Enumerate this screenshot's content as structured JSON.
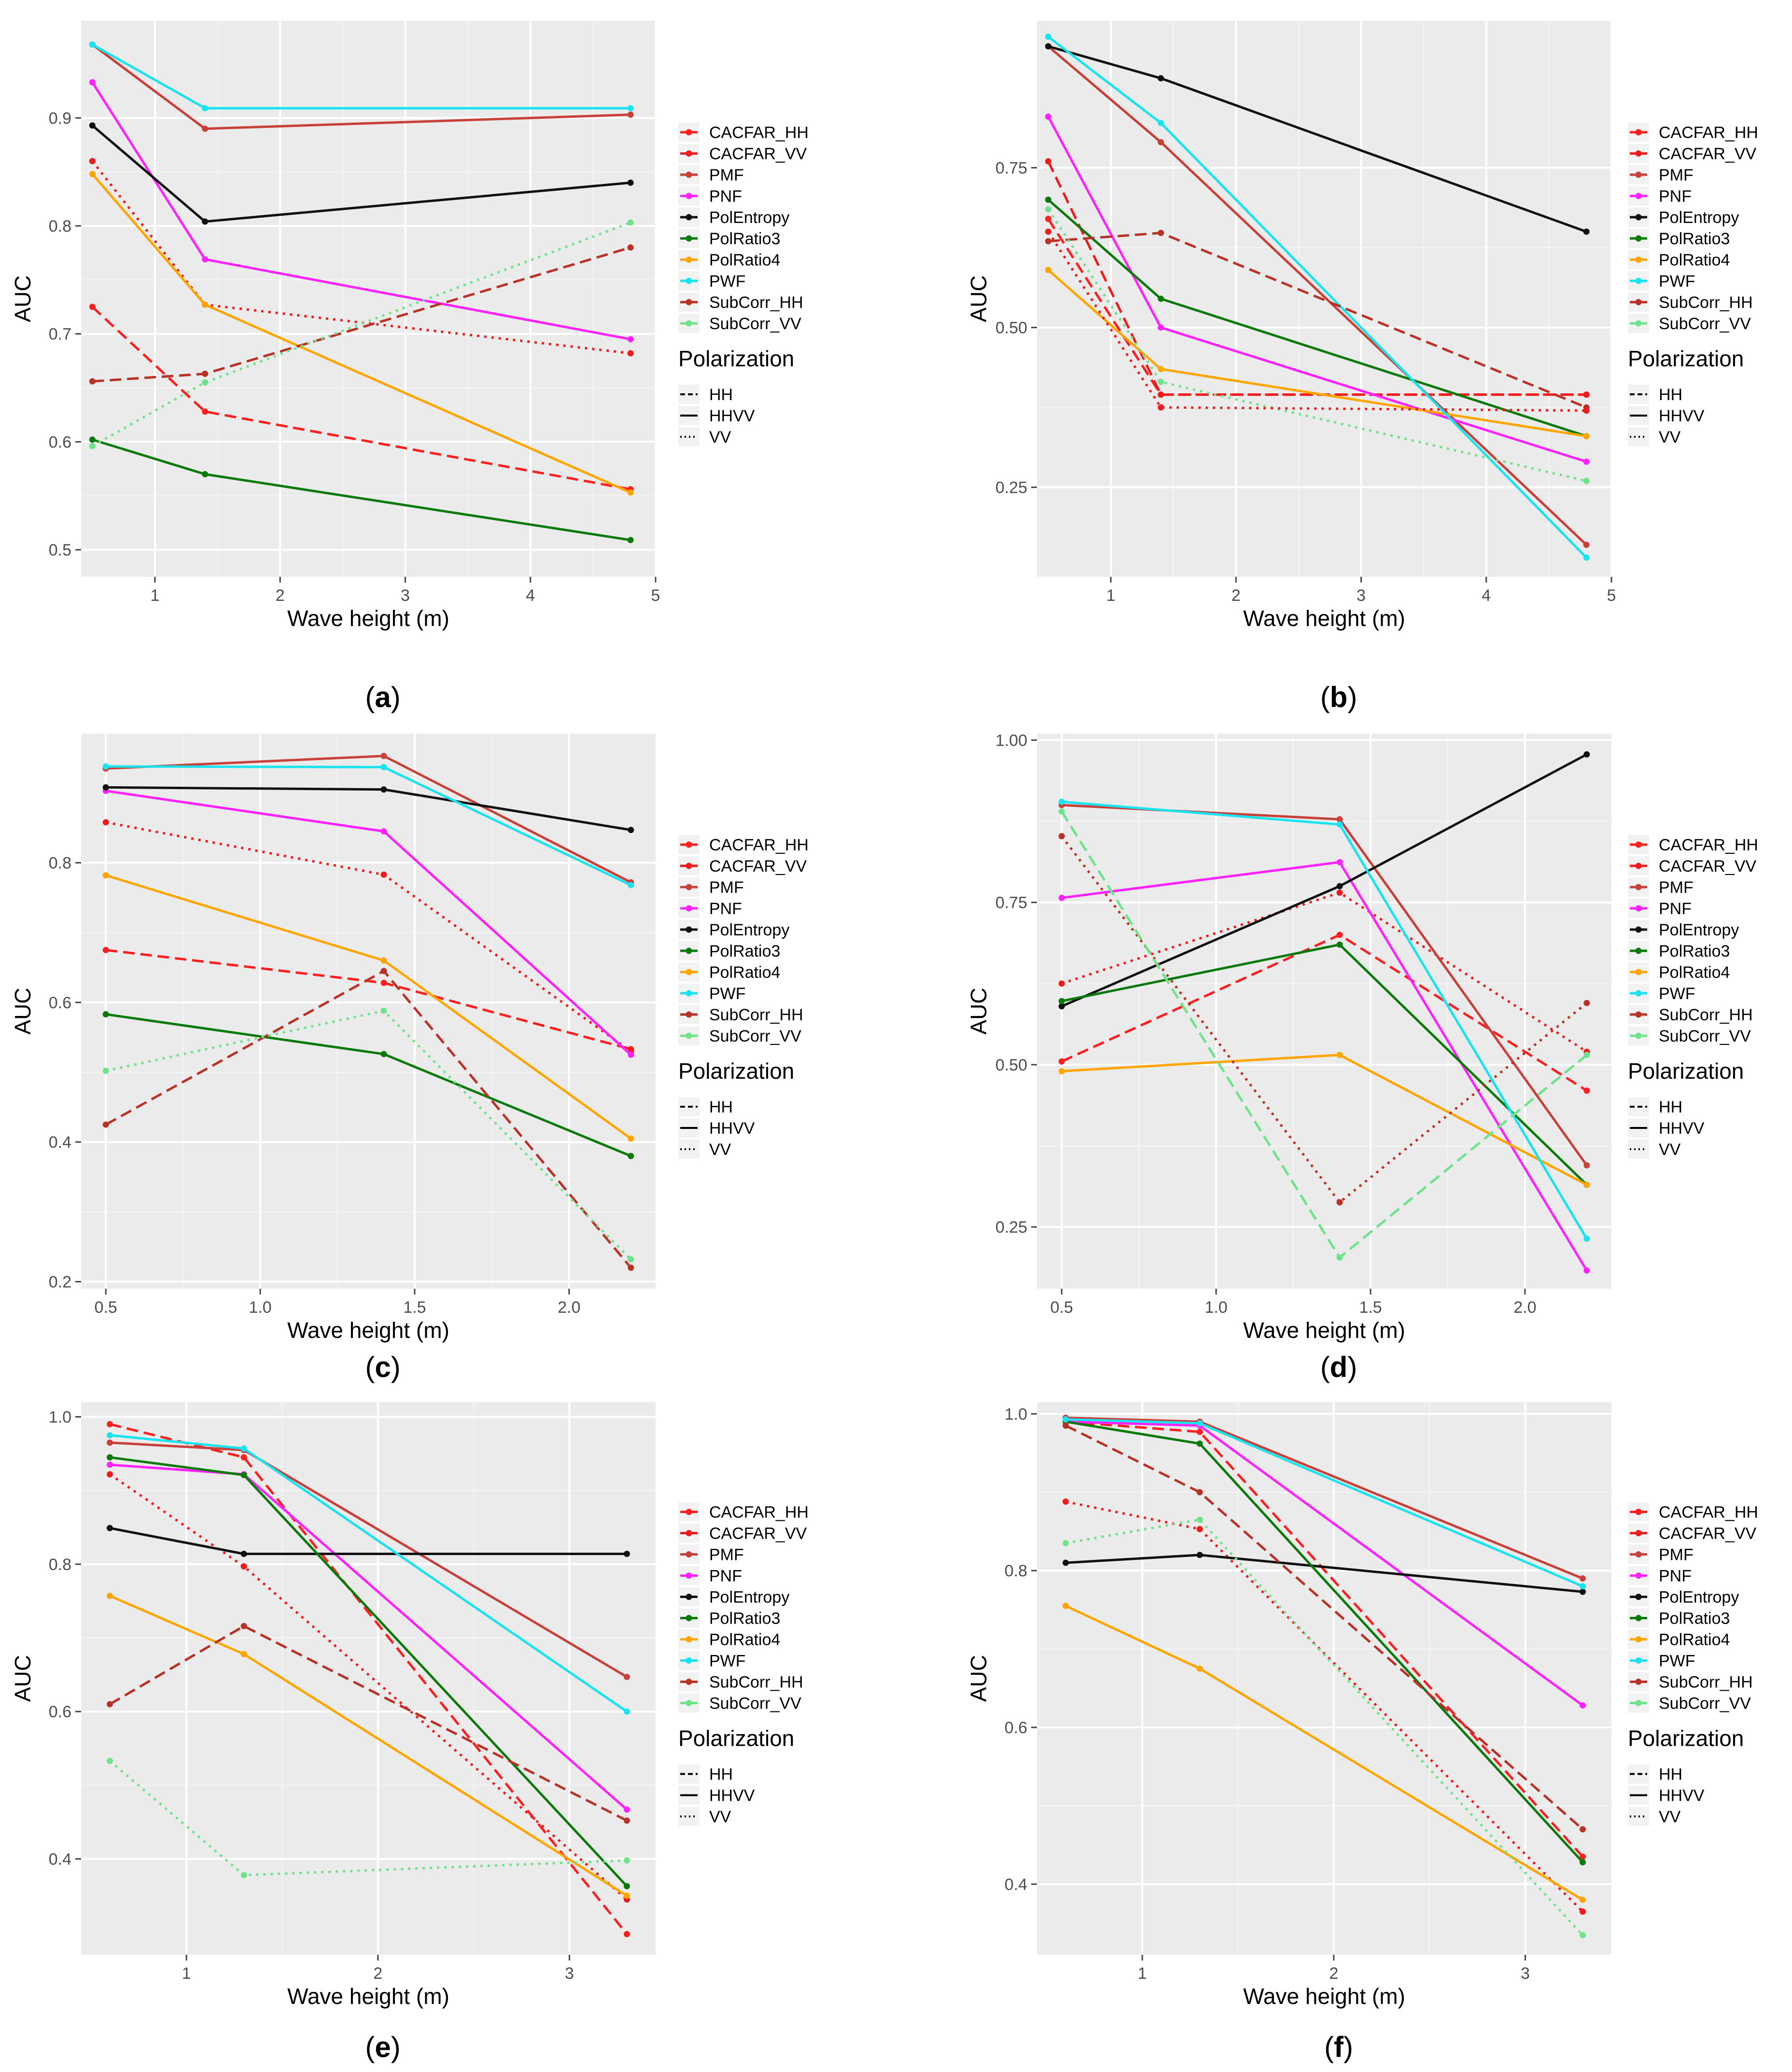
{
  "legend": {
    "title": "Polarization",
    "line_types": [
      {
        "label": "HH",
        "dash": "dashed"
      },
      {
        "label": "HHVV",
        "dash": "solid"
      },
      {
        "label": "VV",
        "dash": "dotted"
      }
    ]
  },
  "colors": {
    "CACFAR_HH": "#ff1f1f",
    "CACFAR_VV": "#ee1c1c",
    "PMF": "#c8403a",
    "PNF": "#ff22ff",
    "PolEntropy": "#111111",
    "PolRatio3": "#0b7a0b",
    "PolRatio4": "#ffa500",
    "PWF": "#19e3ee",
    "SubCorr_HH": "#b83228",
    "SubCorr_VV": "#6fe38c"
  },
  "chart_data": [
    {
      "type": "line",
      "panel_label": "a",
      "xlabel": "Wave height (m)",
      "ylabel": "AUC",
      "xlim": [
        0.41,
        5.0
      ],
      "ylim": [
        0.475,
        0.99
      ],
      "xticks": [
        1,
        2,
        3,
        4,
        5
      ],
      "xticklabels": [
        "1",
        "2",
        "3",
        "4",
        "5"
      ],
      "yticks": [
        0.5,
        0.6,
        0.7,
        0.8,
        0.9
      ],
      "yticklabels": [
        "0.5",
        "0.6",
        "0.7",
        "0.8",
        "0.9"
      ],
      "x": [
        0.5,
        1.4,
        4.8
      ],
      "series": [
        {
          "name": "CACFAR_HH",
          "dash": "HH",
          "values": [
            0.725,
            0.628,
            0.556
          ]
        },
        {
          "name": "CACFAR_VV",
          "dash": "VV",
          "values": [
            0.86,
            0.727,
            0.682
          ]
        },
        {
          "name": "PMF",
          "dash": "HHVV",
          "values": [
            0.968,
            0.89,
            0.903
          ]
        },
        {
          "name": "PNF",
          "dash": "HHVV",
          "values": [
            0.933,
            0.769,
            0.695
          ]
        },
        {
          "name": "PolEntropy",
          "dash": "HHVV",
          "values": [
            0.893,
            0.804,
            0.84
          ]
        },
        {
          "name": "PolRatio3",
          "dash": "HHVV",
          "values": [
            0.602,
            0.57,
            0.509
          ]
        },
        {
          "name": "PolRatio4",
          "dash": "HHVV",
          "values": [
            0.848,
            0.727,
            0.553
          ]
        },
        {
          "name": "PWF",
          "dash": "HHVV",
          "values": [
            0.968,
            0.909,
            0.909
          ]
        },
        {
          "name": "SubCorr_HH",
          "dash": "HH",
          "values": [
            0.656,
            0.663,
            0.78
          ]
        },
        {
          "name": "SubCorr_VV",
          "dash": "VV",
          "values": [
            0.596,
            0.655,
            0.803
          ]
        }
      ]
    },
    {
      "type": "line",
      "panel_label": "b",
      "xlabel": "Wave height (m)",
      "ylabel": "AUC",
      "xlim": [
        0.41,
        5.0
      ],
      "ylim": [
        0.11,
        0.98
      ],
      "xticks": [
        1,
        2,
        3,
        4,
        5
      ],
      "xticklabels": [
        "1",
        "2",
        "3",
        "4",
        "5"
      ],
      "yticks": [
        0.25,
        0.5,
        0.75
      ],
      "yticklabels": [
        "0.25",
        "0.50",
        "0.75"
      ],
      "x": [
        0.5,
        1.4,
        4.8
      ],
      "series": [
        {
          "name": "CACFAR_HH",
          "dash": "HH",
          "values": [
            0.67,
            0.395,
            0.395
          ]
        },
        {
          "name": "CACFAR_VV",
          "dash": "HH",
          "values": [
            0.76,
            0.395,
            0.395
          ]
        },
        {
          "name": "PMF",
          "dash": "HHVV",
          "values": [
            0.94,
            0.79,
            0.16
          ]
        },
        {
          "name": "PNF",
          "dash": "HHVV",
          "values": [
            0.83,
            0.5,
            0.29
          ]
        },
        {
          "name": "PolEntropy",
          "dash": "HHVV",
          "values": [
            0.94,
            0.89,
            0.65
          ]
        },
        {
          "name": "PolRatio3",
          "dash": "HHVV",
          "values": [
            0.7,
            0.545,
            0.33
          ]
        },
        {
          "name": "PolRatio4",
          "dash": "HHVV",
          "values": [
            0.59,
            0.435,
            0.33
          ]
        },
        {
          "name": "PWF",
          "dash": "HHVV",
          "values": [
            0.955,
            0.82,
            0.14
          ]
        },
        {
          "name": "SubCorr_HH",
          "dash": "HH",
          "values": [
            0.635,
            0.648,
            0.375
          ]
        },
        {
          "name": "SubCorr_VV",
          "dash": "VV",
          "values": [
            0.685,
            0.415,
            0.26
          ]
        },
        {
          "name": "CACFAR_VV",
          "dash": "VV",
          "values": [
            0.65,
            0.375,
            0.37
          ]
        }
      ]
    },
    {
      "type": "line",
      "panel_label": "c",
      "xlabel": "Wave height (m)",
      "ylabel": "AUC",
      "xlim": [
        0.42,
        2.28
      ],
      "ylim": [
        0.19,
        0.985
      ],
      "xticks": [
        0.5,
        1.0,
        1.5,
        2.0
      ],
      "xticklabels": [
        "0.5",
        "1.0",
        "1.5",
        "2.0"
      ],
      "yticks": [
        0.2,
        0.4,
        0.6,
        0.8
      ],
      "yticklabels": [
        "0.2",
        "0.4",
        "0.6",
        "0.8"
      ],
      "x": [
        0.5,
        1.4,
        2.2
      ],
      "series": [
        {
          "name": "CACFAR_HH",
          "dash": "HH",
          "values": [
            0.675,
            0.628,
            0.533
          ]
        },
        {
          "name": "CACFAR_VV",
          "dash": "VV",
          "values": [
            0.858,
            0.783,
            0.53
          ]
        },
        {
          "name": "PMF",
          "dash": "HHVV",
          "values": [
            0.935,
            0.953,
            0.772
          ]
        },
        {
          "name": "PNF",
          "dash": "HHVV",
          "values": [
            0.903,
            0.845,
            0.525
          ]
        },
        {
          "name": "PolEntropy",
          "dash": "HHVV",
          "values": [
            0.908,
            0.905,
            0.847
          ]
        },
        {
          "name": "PolRatio3",
          "dash": "HHVV",
          "values": [
            0.583,
            0.526,
            0.38
          ]
        },
        {
          "name": "PolRatio4",
          "dash": "HHVV",
          "values": [
            0.782,
            0.66,
            0.405
          ]
        },
        {
          "name": "PWF",
          "dash": "HHVV",
          "values": [
            0.938,
            0.937,
            0.768
          ]
        },
        {
          "name": "SubCorr_HH",
          "dash": "HH",
          "values": [
            0.425,
            0.645,
            0.22
          ]
        },
        {
          "name": "SubCorr_VV",
          "dash": "VV",
          "values": [
            0.502,
            0.588,
            0.232
          ]
        }
      ]
    },
    {
      "type": "line",
      "panel_label": "d",
      "xlabel": "Wave height (m)",
      "ylabel": "AUC",
      "xlim": [
        0.42,
        2.28
      ],
      "ylim": [
        0.155,
        1.01
      ],
      "xticks": [
        0.5,
        1.0,
        1.5,
        2.0
      ],
      "xticklabels": [
        "0.5",
        "1.0",
        "1.5",
        "2.0"
      ],
      "yticks": [
        0.25,
        0.5,
        0.75,
        1.0
      ],
      "yticklabels": [
        "0.25",
        "0.50",
        "0.75",
        "1.00"
      ],
      "x": [
        0.5,
        1.4,
        2.2
      ],
      "series": [
        {
          "name": "CACFAR_HH",
          "dash": "HH",
          "values": [
            0.505,
            0.7,
            0.46
          ]
        },
        {
          "name": "CACFAR_VV",
          "dash": "VV",
          "values": [
            0.625,
            0.765,
            0.52
          ]
        },
        {
          "name": "PMF",
          "dash": "HHVV",
          "values": [
            0.9,
            0.878,
            0.345
          ]
        },
        {
          "name": "PNF",
          "dash": "HHVV",
          "values": [
            0.757,
            0.812,
            0.183
          ]
        },
        {
          "name": "PolEntropy",
          "dash": "HHVV",
          "values": [
            0.59,
            0.775,
            0.978
          ]
        },
        {
          "name": "PolRatio3",
          "dash": "HHVV",
          "values": [
            0.598,
            0.685,
            0.315
          ]
        },
        {
          "name": "PolRatio4",
          "dash": "HHVV",
          "values": [
            0.49,
            0.515,
            0.315
          ]
        },
        {
          "name": "PWF",
          "dash": "HHVV",
          "values": [
            0.905,
            0.87,
            0.232
          ]
        },
        {
          "name": "SubCorr_HH",
          "dash": "VV",
          "values": [
            0.852,
            0.288,
            0.595
          ]
        },
        {
          "name": "SubCorr_VV",
          "dash": "HH",
          "values": [
            0.89,
            0.203,
            0.515
          ]
        }
      ]
    },
    {
      "type": "line",
      "panel_label": "e",
      "xlabel": "Wave height (m)",
      "ylabel": "AUC",
      "xlim": [
        0.45,
        3.45
      ],
      "ylim": [
        0.27,
        1.02
      ],
      "xticks": [
        1,
        2,
        3
      ],
      "xticklabels": [
        "1",
        "2",
        "3"
      ],
      "yticks": [
        0.4,
        0.6,
        0.8,
        1.0
      ],
      "yticklabels": [
        "0.4",
        "0.6",
        "0.8",
        "1.0"
      ],
      "x": [
        0.6,
        1.3,
        3.3
      ],
      "series": [
        {
          "name": "CACFAR_HH",
          "dash": "HH",
          "values": [
            0.99,
            0.945,
            0.298
          ]
        },
        {
          "name": "CACFAR_VV",
          "dash": "VV",
          "values": [
            0.922,
            0.797,
            0.345
          ]
        },
        {
          "name": "PMF",
          "dash": "HHVV",
          "values": [
            0.965,
            0.955,
            0.647
          ]
        },
        {
          "name": "PNF",
          "dash": "HHVV",
          "values": [
            0.935,
            0.922,
            0.467
          ]
        },
        {
          "name": "PolEntropy",
          "dash": "HHVV",
          "values": [
            0.849,
            0.814,
            0.814
          ]
        },
        {
          "name": "PolRatio3",
          "dash": "HHVV",
          "values": [
            0.945,
            0.921,
            0.363
          ]
        },
        {
          "name": "PolRatio4",
          "dash": "HHVV",
          "values": [
            0.757,
            0.678,
            0.35
          ]
        },
        {
          "name": "PWF",
          "dash": "HHVV",
          "values": [
            0.975,
            0.957,
            0.6
          ]
        },
        {
          "name": "SubCorr_HH",
          "dash": "HH",
          "values": [
            0.61,
            0.716,
            0.452
          ]
        },
        {
          "name": "SubCorr_VV",
          "dash": "VV",
          "values": [
            0.533,
            0.378,
            0.398
          ]
        }
      ]
    },
    {
      "type": "line",
      "panel_label": "f",
      "xlabel": "Wave height (m)",
      "ylabel": "AUC",
      "xlim": [
        0.45,
        3.45
      ],
      "ylim": [
        0.31,
        1.015
      ],
      "xticks": [
        1,
        2,
        3
      ],
      "xticklabels": [
        "1",
        "2",
        "3"
      ],
      "yticks": [
        0.4,
        0.6,
        0.8,
        1.0
      ],
      "yticklabels": [
        "0.4",
        "0.6",
        "0.8",
        "1.0"
      ],
      "x": [
        0.6,
        1.3,
        3.3
      ],
      "series": [
        {
          "name": "CACFAR_HH",
          "dash": "HH",
          "values": [
            0.99,
            0.977,
            0.435
          ]
        },
        {
          "name": "CACFAR_VV",
          "dash": "VV",
          "values": [
            0.888,
            0.853,
            0.365
          ]
        },
        {
          "name": "PMF",
          "dash": "HHVV",
          "values": [
            0.995,
            0.99,
            0.79
          ]
        },
        {
          "name": "PNF",
          "dash": "HHVV",
          "values": [
            0.99,
            0.985,
            0.628
          ]
        },
        {
          "name": "PolEntropy",
          "dash": "HHVV",
          "values": [
            0.81,
            0.82,
            0.773
          ]
        },
        {
          "name": "PolRatio3",
          "dash": "HHVV",
          "values": [
            0.99,
            0.962,
            0.428
          ]
        },
        {
          "name": "PolRatio4",
          "dash": "HHVV",
          "values": [
            0.755,
            0.675,
            0.38
          ]
        },
        {
          "name": "PWF",
          "dash": "HHVV",
          "values": [
            0.993,
            0.988,
            0.78
          ]
        },
        {
          "name": "SubCorr_HH",
          "dash": "HH",
          "values": [
            0.985,
            0.9,
            0.47
          ]
        },
        {
          "name": "SubCorr_VV",
          "dash": "VV",
          "values": [
            0.835,
            0.865,
            0.335
          ]
        }
      ]
    }
  ]
}
